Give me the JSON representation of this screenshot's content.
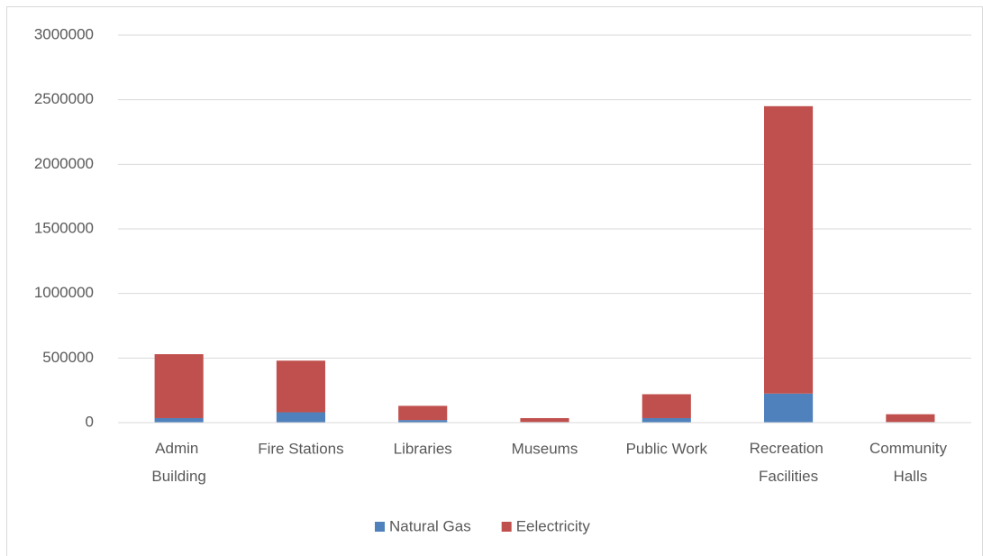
{
  "chart_data": {
    "type": "bar",
    "stacked": true,
    "categories": [
      "Admin Building",
      "Fire Stations",
      "Libraries",
      "Museums",
      "Public Work",
      "Recreation Facilities",
      "Community Halls"
    ],
    "series": [
      {
        "name": "Natural Gas",
        "color": "#4f81bd",
        "values": [
          35000,
          80000,
          20000,
          5000,
          35000,
          225000,
          5000
        ]
      },
      {
        "name": "Eelectricity",
        "color": "#c0504d",
        "values": [
          495000,
          400000,
          110000,
          30000,
          185000,
          2225000,
          60000
        ]
      }
    ],
    "ylim": [
      0,
      3000000
    ],
    "yticks": [
      0,
      500000,
      1000000,
      1500000,
      2000000,
      2500000,
      3000000
    ],
    "grid": true,
    "legend": "bottom"
  }
}
